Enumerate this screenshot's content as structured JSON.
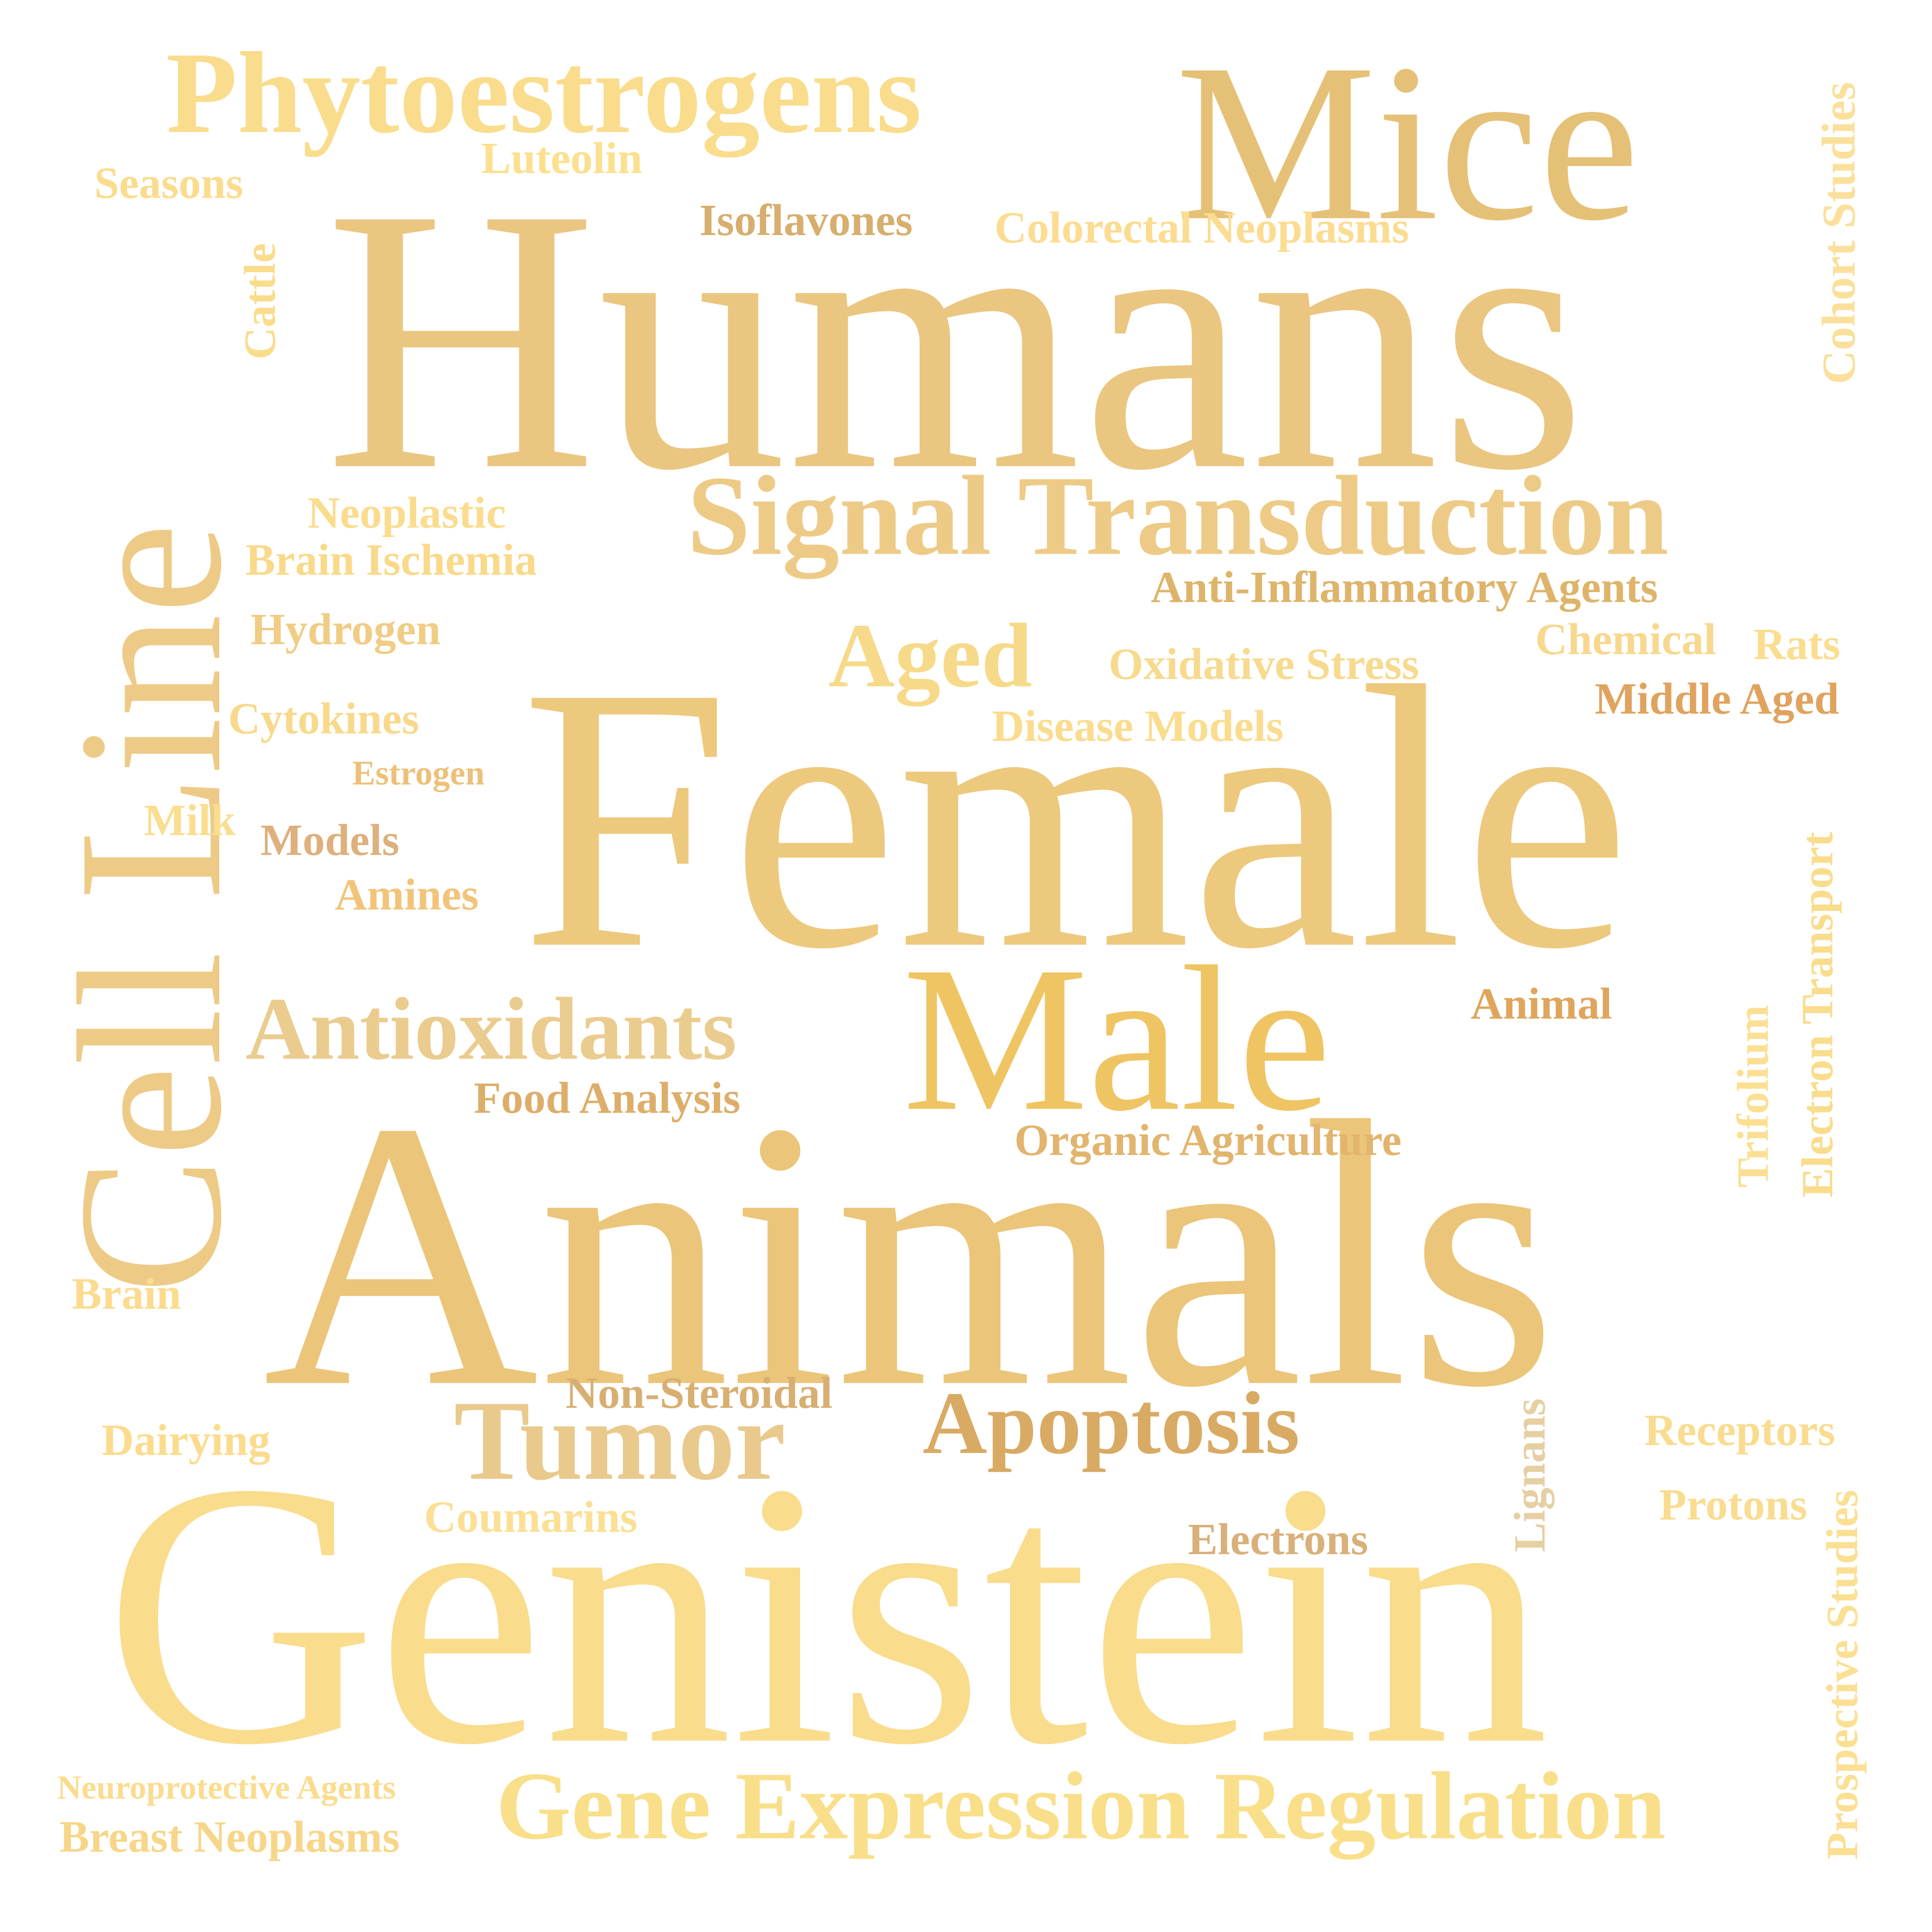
{
  "words": [
    {
      "id": "humans",
      "text": "Humans",
      "color": "#EAC680"
    },
    {
      "id": "female",
      "text": "Female",
      "color": "#EDC97E"
    },
    {
      "id": "animals",
      "text": "Animals",
      "color": "#EBC579"
    },
    {
      "id": "genistein",
      "text": "Genistein",
      "color": "#F9DC8C"
    },
    {
      "id": "mice",
      "text": "Mice",
      "color": "#E5C178"
    },
    {
      "id": "cell-line",
      "text": "Cell Line",
      "color": "#EDCB87"
    },
    {
      "id": "male",
      "text": "Male",
      "color": "#EFC462"
    },
    {
      "id": "phytoestrogens",
      "text": "Phytoestrogens",
      "color": "#F9DC8C"
    },
    {
      "id": "signal-transduction",
      "text": "Signal Transduction",
      "color": "#EDCB87"
    },
    {
      "id": "gene-expression-regulation",
      "text": "Gene Expression Regulation",
      "color": "#F9DF8A"
    },
    {
      "id": "tumor",
      "text": "Tumor",
      "color": "#E9C98C"
    },
    {
      "id": "antioxidants",
      "text": "Antioxidants",
      "color": "#EBCC8F"
    },
    {
      "id": "apoptosis",
      "text": "Apoptosis",
      "color": "#D8AA63"
    },
    {
      "id": "aged",
      "text": "Aged",
      "color": "#F6DA8A"
    },
    {
      "id": "luteolin",
      "text": "Luteolin",
      "color": "#FCE08F"
    },
    {
      "id": "seasons",
      "text": "Seasons",
      "color": "#FBDC8E"
    },
    {
      "id": "isoflavones",
      "text": "Isoflavones",
      "color": "#D7AE6E"
    },
    {
      "id": "colorectal-neoplasms",
      "text": "Colorectal Neoplasms",
      "color": "#FBDC90"
    },
    {
      "id": "cattle",
      "text": "Cattle",
      "color": "#F9DC8C"
    },
    {
      "id": "cohort-studies",
      "text": "Cohort Studies",
      "color": "#FAE09B"
    },
    {
      "id": "neoplastic",
      "text": "Neoplastic",
      "color": "#FBDC8E"
    },
    {
      "id": "brain-ischemia",
      "text": "Brain Ischemia",
      "color": "#F9D98A"
    },
    {
      "id": "anti-inflammatory-agents",
      "text": "Anti-Inflammatory Agents",
      "color": "#DEB46A"
    },
    {
      "id": "hydrogen",
      "text": "Hydrogen",
      "color": "#F0CC84"
    },
    {
      "id": "chemical",
      "text": "Chemical",
      "color": "#F7D88E"
    },
    {
      "id": "rats",
      "text": "Rats",
      "color": "#FADD8E"
    },
    {
      "id": "oxidative-stress",
      "text": "Oxidative Stress",
      "color": "#F7DA8E"
    },
    {
      "id": "middle-aged",
      "text": "Middle Aged",
      "color": "#E0A35E"
    },
    {
      "id": "cytokines",
      "text": "Cytokines",
      "color": "#F8D98C"
    },
    {
      "id": "disease-models",
      "text": "Disease Models",
      "color": "#FBDC8E"
    },
    {
      "id": "estrogen",
      "text": "Estrogen",
      "color": "#EDC07A"
    },
    {
      "id": "milk",
      "text": "Milk",
      "color": "#FADE90"
    },
    {
      "id": "models",
      "text": "Models",
      "color": "#DDB07D"
    },
    {
      "id": "amines",
      "text": "Amines",
      "color": "#F2C47A"
    },
    {
      "id": "electron-transport",
      "text": "Electron Transport",
      "color": "#F9DC8C"
    },
    {
      "id": "trifolium",
      "text": "Trifolium",
      "color": "#FBDF92"
    },
    {
      "id": "animal",
      "text": "Animal",
      "color": "#E0A55C"
    },
    {
      "id": "food-analysis",
      "text": "Food Analysis",
      "color": "#DDAE6A"
    },
    {
      "id": "organic-agriculture",
      "text": "Organic Agriculture",
      "color": "#E2B46E"
    },
    {
      "id": "brain",
      "text": "Brain",
      "color": "#FBDC8E"
    },
    {
      "id": "non-steroidal",
      "text": "Non-Steroidal",
      "color": "#D8AF72"
    },
    {
      "id": "lignans",
      "text": "Lignans",
      "color": "#E6CFA3"
    },
    {
      "id": "dairying",
      "text": "Dairying",
      "color": "#FBDC8E"
    },
    {
      "id": "receptors",
      "text": "Receptors",
      "color": "#FADC90"
    },
    {
      "id": "coumarins",
      "text": "Coumarins",
      "color": "#FBDF94"
    },
    {
      "id": "electrons",
      "text": "Electrons",
      "color": "#D9B07A"
    },
    {
      "id": "protons",
      "text": "Protons",
      "color": "#FADC90"
    },
    {
      "id": "prospective-studies",
      "text": "Prospective Studies",
      "color": "#FBDF92"
    },
    {
      "id": "neuroprotective-agents",
      "text": "Neuroprotective Agents",
      "color": "#FBDC8E"
    },
    {
      "id": "breast-neoplasms",
      "text": "Breast Neoplasms",
      "color": "#F7D689"
    }
  ]
}
